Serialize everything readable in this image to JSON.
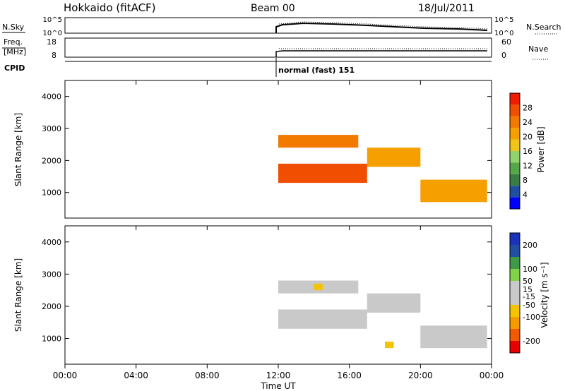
{
  "header": {
    "station": "Hokkaido (fitACF)",
    "beam": "Beam 00",
    "date": "18/Jul/2011"
  },
  "sky_panel": {
    "left_label": "N.Sky",
    "right_label": "N.Search",
    "left_ticks": [
      "10^5",
      "10^0"
    ],
    "right_ticks": [
      "10^5",
      "10^0"
    ]
  },
  "freq_panel": {
    "left_label_1": "Freq.",
    "left_label_2": "[MHz]",
    "right_label": "Nave",
    "left_ticks": [
      "18",
      "8"
    ],
    "right_ticks": [
      "60",
      "0"
    ]
  },
  "cpid": {
    "label": "CPID",
    "mode": "normal (fast) 151"
  },
  "colors": {
    "power": [
      "#0000ff",
      "#1f4fa0",
      "#3a7d44",
      "#54a848",
      "#8fd36a",
      "#f0c419",
      "#f5a000",
      "#f27a00",
      "#f04e00",
      "#f01e00"
    ],
    "velocity": [
      "#e60000",
      "#f05a00",
      "#f59b00",
      "#f5c400",
      "#c9c9c9",
      "#c9c9c9",
      "#7fd24a",
      "#3e9a46",
      "#1f4fa0",
      "#1a33b8"
    ]
  },
  "chart_data": [
    {
      "type": "heatmap",
      "name": "power",
      "ylabel": "Slant Range [km]",
      "yticks": [
        "1000",
        "2000",
        "3000",
        "4000"
      ],
      "ylim": [
        200,
        4500
      ],
      "xlim": [
        "00:00",
        "00:00"
      ],
      "colorbar": {
        "label": "Power [dB]",
        "ticks": [
          "4",
          "8",
          "12",
          "16",
          "20",
          "24",
          "28"
        ],
        "range": [
          0,
          32
        ]
      },
      "bands": [
        {
          "start": "12:00",
          "end": "17:00",
          "range_km": [
            1300,
            1900
          ],
          "value": 26
        },
        {
          "start": "12:00",
          "end": "16:30",
          "range_km": [
            2400,
            2800
          ],
          "value": 24
        },
        {
          "start": "17:00",
          "end": "20:00",
          "range_km": [
            1800,
            2400
          ],
          "value": 22
        },
        {
          "start": "20:00",
          "end": "23:45",
          "range_km": [
            700,
            1400
          ],
          "value": 20
        }
      ]
    },
    {
      "type": "heatmap",
      "name": "velocity",
      "ylabel": "Slant Range [km]",
      "yticks": [
        "1000",
        "2000",
        "3000",
        "4000"
      ],
      "ylim": [
        200,
        4500
      ],
      "xlim": [
        "00:00",
        "00:00"
      ],
      "xlabel": "Time UT",
      "xticks": [
        "00:00",
        "04:00",
        "08:00",
        "12:00",
        "16:00",
        "20:00",
        "00:00"
      ],
      "colorbar": {
        "label": "Velocity [m s⁻¹]",
        "ticks": [
          "-200",
          "-100",
          "-50",
          "-15",
          "15",
          "50",
          "100",
          "200"
        ],
        "range": [
          -250,
          250
        ]
      },
      "bands": [
        {
          "start": "12:00",
          "end": "17:00",
          "range_km": [
            1300,
            1900
          ],
          "value": 0
        },
        {
          "start": "12:00",
          "end": "16:30",
          "range_km": [
            2400,
            2800
          ],
          "value": 0
        },
        {
          "start": "17:00",
          "end": "20:00",
          "range_km": [
            1800,
            2400
          ],
          "value": -5
        },
        {
          "start": "20:00",
          "end": "23:45",
          "range_km": [
            700,
            1400
          ],
          "value": 5
        },
        {
          "start": "14:00",
          "end": "14:30",
          "range_km": [
            2500,
            2700
          ],
          "value": -60
        },
        {
          "start": "18:00",
          "end": "18:30",
          "range_km": [
            700,
            900
          ],
          "value": -70
        }
      ]
    }
  ]
}
